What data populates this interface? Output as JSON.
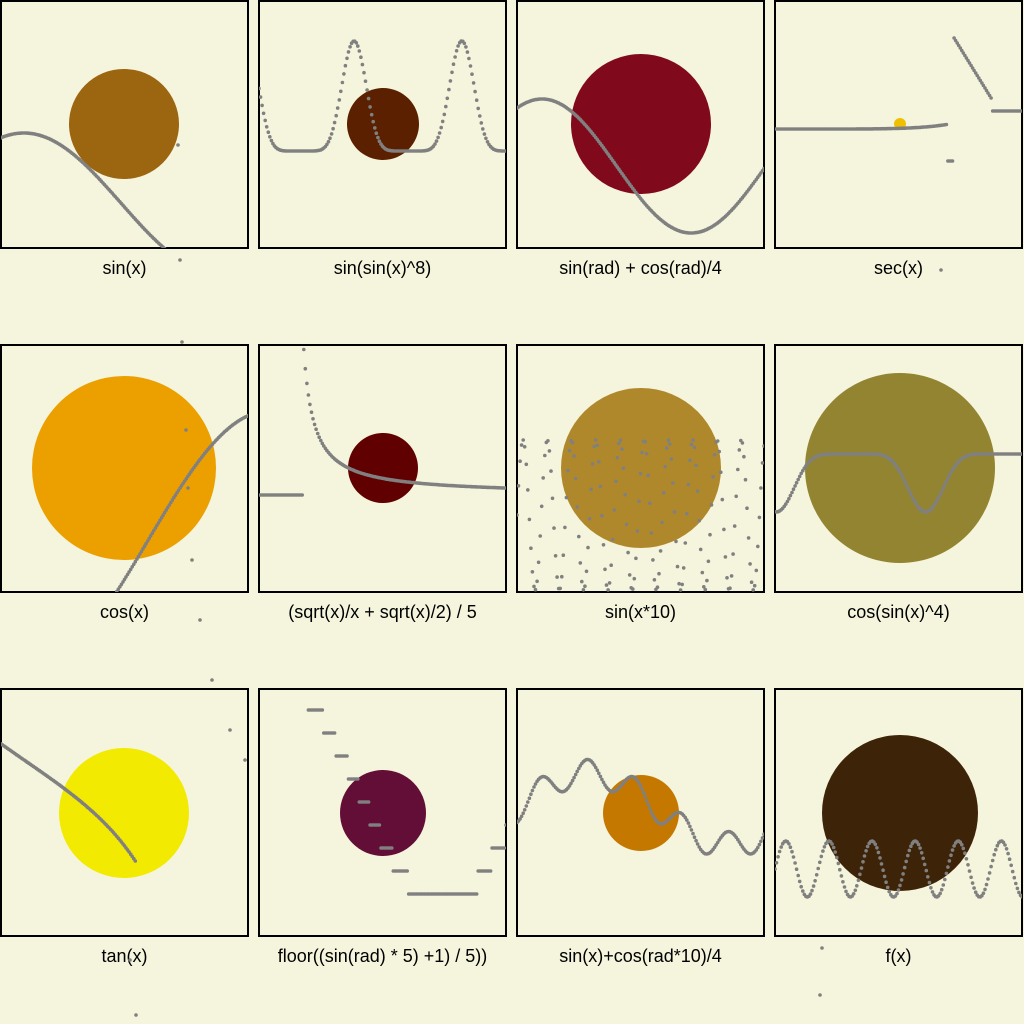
{
  "page": {
    "background": "#f5f4dc",
    "curve_color": "#808080"
  },
  "chart_data": [
    {
      "type": "scatter",
      "title": "sin(x)",
      "circle_color": "#9c6510",
      "marker_color": "#808080"
    },
    {
      "type": "scatter",
      "title": "sin(sin(x)^8)",
      "circle_color": "#5a2000",
      "marker_color": "#808080"
    },
    {
      "type": "scatter",
      "title": "sin(rad) + cos(rad)/4",
      "circle_color": "#800a1c",
      "marker_color": "#808080"
    },
    {
      "type": "scatter",
      "title": "sec(x)",
      "circle_color": "#f0c000",
      "marker_color": "#808080"
    },
    {
      "type": "scatter",
      "title": "cos(x)",
      "circle_color": "#eba000",
      "marker_color": "#808080"
    },
    {
      "type": "scatter",
      "title": "(sqrt(x)/x + sqrt(x)/2) / 5",
      "circle_color": "#600000",
      "marker_color": "#808080"
    },
    {
      "type": "scatter",
      "title": "sin(x*10)",
      "circle_color": "#b0882c",
      "marker_color": "#808080"
    },
    {
      "type": "scatter",
      "title": "cos(sin(x)^4)",
      "circle_color": "#928430",
      "marker_color": "#808080"
    },
    {
      "type": "scatter",
      "title": "tan(x)",
      "circle_color": "#f2ea00",
      "marker_color": "#808080"
    },
    {
      "type": "scatter",
      "title": "floor((sin(rad) * 5) +1) / 5))",
      "circle_color": "#620e36",
      "marker_color": "#808080"
    },
    {
      "type": "scatter",
      "title": "sin(x)+cos(rad*10)/4",
      "circle_color": "#c47800",
      "marker_color": "#808080"
    },
    {
      "type": "scatter",
      "title": "f(x)",
      "circle_color": "#3d2308",
      "marker_color": "#808080"
    }
  ]
}
